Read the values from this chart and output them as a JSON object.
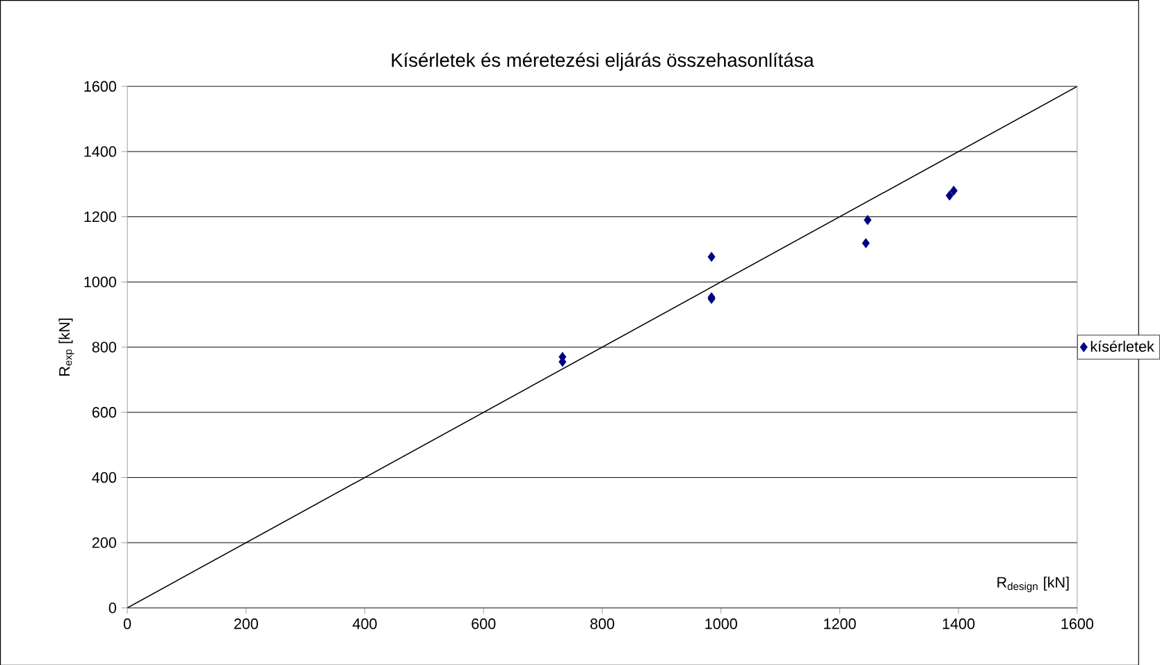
{
  "chart_data": {
    "type": "scatter",
    "title": "Kísérletek és méretezési eljárás összehasonlítása",
    "xlabel": "R$_{design}$ [kN]",
    "ylabel": "R$_{exp}$ [kN]",
    "xlim": [
      0,
      1600
    ],
    "ylim": [
      0,
      1600
    ],
    "xticks": [
      0,
      200,
      400,
      600,
      800,
      1000,
      1200,
      1400,
      1600
    ],
    "yticks": [
      0,
      200,
      400,
      600,
      800,
      1000,
      1200,
      1400,
      1600
    ],
    "grid": "y",
    "legend": "right",
    "series": [
      {
        "name": "kísérletek",
        "color": "#000080",
        "marker": "diamond",
        "x": [
          733,
          733,
          984,
          984,
          984,
          1247,
          1244,
          1385,
          1392
        ],
        "values": [
          770,
          755,
          1077,
          953,
          948,
          1190,
          1119,
          1265,
          1280
        ]
      },
      {
        "type": "line",
        "color": "#000000",
        "marker": "none",
        "x": [
          0,
          1600
        ],
        "values": [
          0,
          1600
        ]
      }
    ]
  }
}
